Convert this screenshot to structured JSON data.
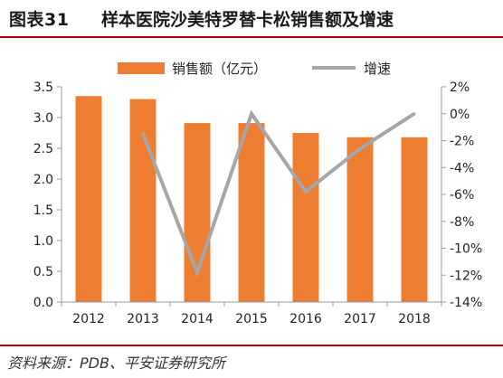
{
  "header": {
    "figure_label": "图表31",
    "title": "样本医院沙美特罗替卡松销售额及增速"
  },
  "footer": {
    "source": "资料来源：PDB、平安证券研究所"
  },
  "colors": {
    "bar": "#ed7d31",
    "line": "#a6a6a6",
    "rule": "#c00000",
    "axis": "#999999"
  },
  "chart_data": {
    "type": "bar",
    "categories": [
      "2012",
      "2013",
      "2014",
      "2015",
      "2016",
      "2017",
      "2018"
    ],
    "series": [
      {
        "name": "销售额（亿元）",
        "type": "bar",
        "axis": "left",
        "values": [
          3.35,
          3.3,
          2.91,
          2.91,
          2.75,
          2.68,
          2.68
        ]
      },
      {
        "name": "增速",
        "type": "line",
        "axis": "right",
        "values": [
          null,
          -1.5,
          -11.8,
          0.0,
          -5.8,
          -2.6,
          0.0
        ]
      }
    ],
    "y_left": {
      "min": 0,
      "max": 3.5,
      "ticks": [
        "0.0",
        "0.5",
        "1.0",
        "1.5",
        "2.0",
        "2.5",
        "3.0",
        "3.5"
      ]
    },
    "y_right": {
      "min": -14,
      "max": 2,
      "ticks": [
        "-14%",
        "-12%",
        "-10%",
        "-8%",
        "-6%",
        "-4%",
        "-2%",
        "0%",
        "2%"
      ]
    },
    "legend_position": "top",
    "grid": false
  }
}
